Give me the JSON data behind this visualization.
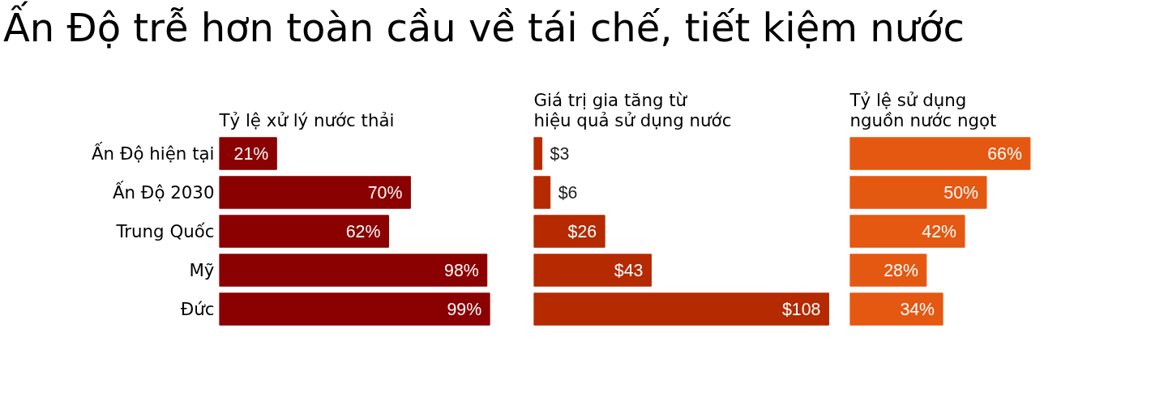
{
  "chart_data": [
    {
      "type": "bar",
      "orientation": "horizontal",
      "title": "Ấn Độ trễ hơn toàn cầu về tái chế, tiết kiệm nước",
      "subtitle": "Tỷ lệ xử lý nước thải",
      "categories": [
        "Ấn Độ hiện tại",
        "Ấn Độ 2030",
        "Trung Quốc",
        "Mỹ",
        "Đức"
      ],
      "values": [
        21,
        70,
        62,
        98,
        99
      ],
      "value_labels": [
        "21%",
        "70%",
        "62%",
        "98%",
        "99%"
      ],
      "color": "#8b0000",
      "tick_labels": "y"
    },
    {
      "type": "bar",
      "orientation": "horizontal",
      "subtitle": "Giá trị gia tăng từ\nhiệu quả sử dụng nước",
      "categories": [
        null,
        null,
        null,
        null,
        null
      ],
      "values": [
        3,
        6,
        26,
        43,
        108
      ],
      "value_labels": [
        "$3",
        "$6",
        "$26",
        "$43",
        "$108"
      ],
      "color": "#b52a00",
      "tick_labels": false
    },
    {
      "type": "bar",
      "orientation": "horizontal",
      "subtitle": "Tỷ lệ sử dụng\nnguồn nước ngọt",
      "categories": [
        null,
        null,
        null,
        null,
        null
      ],
      "values": [
        66,
        50,
        42,
        28,
        34
      ],
      "value_labels": [
        "66%",
        "50%",
        "42%",
        "28%",
        "34%"
      ],
      "color": "#e55812",
      "tick_labels": false
    }
  ]
}
